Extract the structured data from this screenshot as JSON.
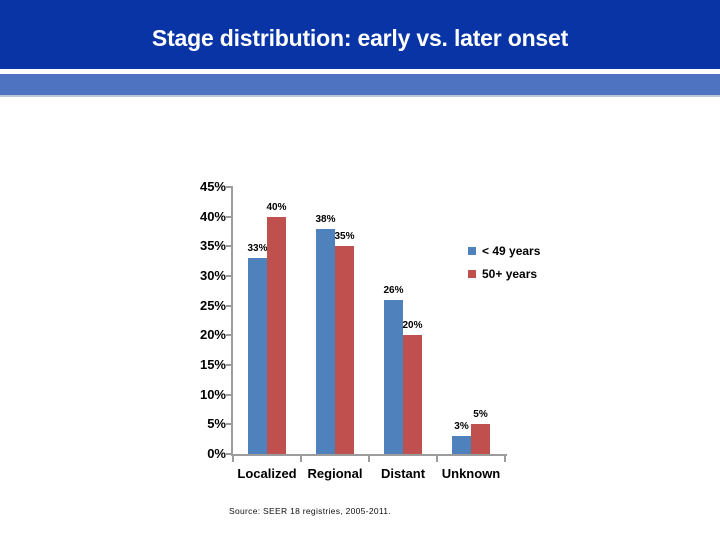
{
  "slide": {
    "title": "Stage distribution: early vs. later onset",
    "source_note": "Source: SEER 18 registries, 2005-2011."
  },
  "colors": {
    "header_band": "#0834A6",
    "accent_band": "#4E73C0",
    "accent_band_edge": "#BBC7D7",
    "axis": "#9C9C9C",
    "series_young": "#4F81BD",
    "series_old": "#C0504D",
    "title_text": "#FFFFFF"
  },
  "chart_data": {
    "type": "bar",
    "title": "",
    "xlabel": "",
    "ylabel": "",
    "categories": [
      "Localized",
      "Regional",
      "Distant",
      "Unknown"
    ],
    "series": [
      {
        "name": "< 49 years",
        "color": "#4F81BD",
        "values": [
          33,
          38,
          26,
          3
        ]
      },
      {
        "name": "50+ years",
        "color": "#C0504D",
        "values": [
          40,
          35,
          20,
          5
        ]
      }
    ],
    "value_suffix": "%",
    "ylim": [
      0,
      45
    ],
    "ytick_step": 5,
    "ytick_labels": [
      "0%",
      "5%",
      "10%",
      "15%",
      "20%",
      "25%",
      "30%",
      "35%",
      "40%",
      "45%"
    ],
    "grid": false,
    "data_labels": true,
    "legend_position": "right"
  }
}
